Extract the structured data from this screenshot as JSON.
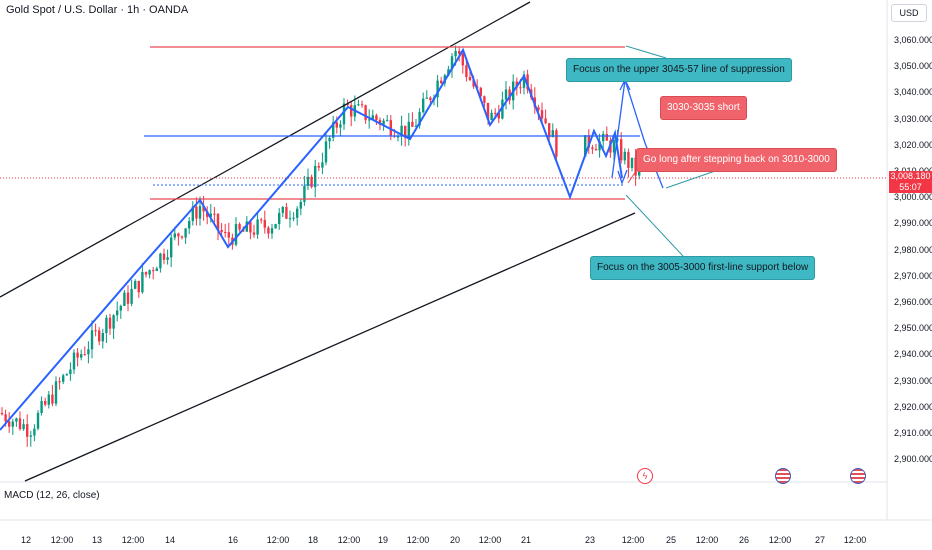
{
  "header": {
    "title": "Gold Spot / U.S. Dollar · 1h · OANDA"
  },
  "currency_box": {
    "label": "USD"
  },
  "price_axis": {
    "ticks": [
      "3,060.000",
      "3,050.000",
      "3,040.000",
      "3,030.000",
      "3,020.000",
      "3,010.000",
      "3,000.000",
      "2,990.000",
      "2,980.000",
      "2,970.000",
      "2,960.000",
      "2,950.000",
      "2,940.000",
      "2,930.000",
      "2,920.000",
      "2,910.000",
      "2,900.000"
    ]
  },
  "current_price": {
    "price": "3,008.180",
    "countdown": "55:07",
    "color": "#f23645"
  },
  "time_axis": {
    "ticks": [
      "12",
      "12:00",
      "13",
      "12:00",
      "14",
      "16",
      "12:00",
      "18",
      "12:00",
      "19",
      "12:00",
      "20",
      "12:00",
      "21",
      "23",
      "12:00",
      "25",
      "12:00",
      "26",
      "12:00",
      "27",
      "12:00"
    ]
  },
  "indicator": {
    "label": "MACD (12, 26, close)"
  },
  "annotations": {
    "resistance": "Focus on the upper 3045-57 line of suppression",
    "short": "3030-3035 short",
    "long": "Go long after stepping back on 3010-3000",
    "support": "Focus on the 3005-3000 first-line support below"
  },
  "colors": {
    "bull": "#089981",
    "bear": "#f23645",
    "trend_line": "#2962ff",
    "callout_teal": "#3eb8c2",
    "callout_red": "#f0636b"
  },
  "event_icons": [
    "flash-event-icon",
    "us-flag-icon",
    "us-flag-icon"
  ]
}
